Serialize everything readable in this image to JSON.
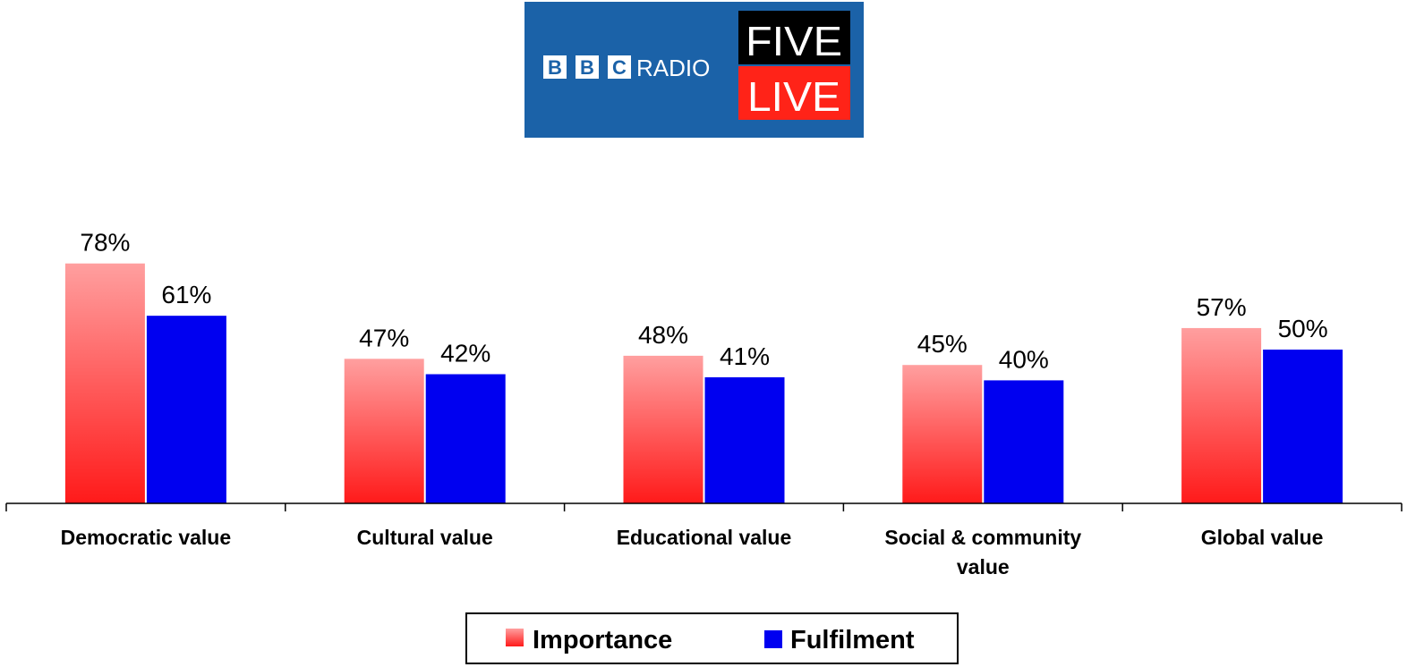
{
  "logo": {
    "bbc_letters": [
      "B",
      "B",
      "C"
    ],
    "radio": "RADIO",
    "five": "FIVE",
    "live": "LIVE",
    "colors": {
      "background": "#1b62a8",
      "five_bg": "#000000",
      "live_bg": "#ff2318"
    }
  },
  "chart_data": {
    "type": "bar",
    "categories": [
      [
        "Democratic value"
      ],
      [
        "Cultural value"
      ],
      [
        "Educational value"
      ],
      [
        "Social & community",
        "value"
      ],
      [
        "Global value"
      ]
    ],
    "series": [
      {
        "name": "Importance",
        "values": [
          78,
          47,
          48,
          45,
          57
        ],
        "labels": [
          "78%",
          "47%",
          "48%",
          "45%",
          "57%"
        ],
        "color_top": "#ff9f9f",
        "color_bottom": "#ff1a1a"
      },
      {
        "name": "Fulfilment",
        "values": [
          61,
          42,
          41,
          40,
          50
        ],
        "labels": [
          "61%",
          "42%",
          "41%",
          "40%",
          "50%"
        ],
        "color": "#0000f0"
      }
    ],
    "ylim": [
      0,
      100
    ],
    "grid": false,
    "legend_position": "bottom"
  }
}
